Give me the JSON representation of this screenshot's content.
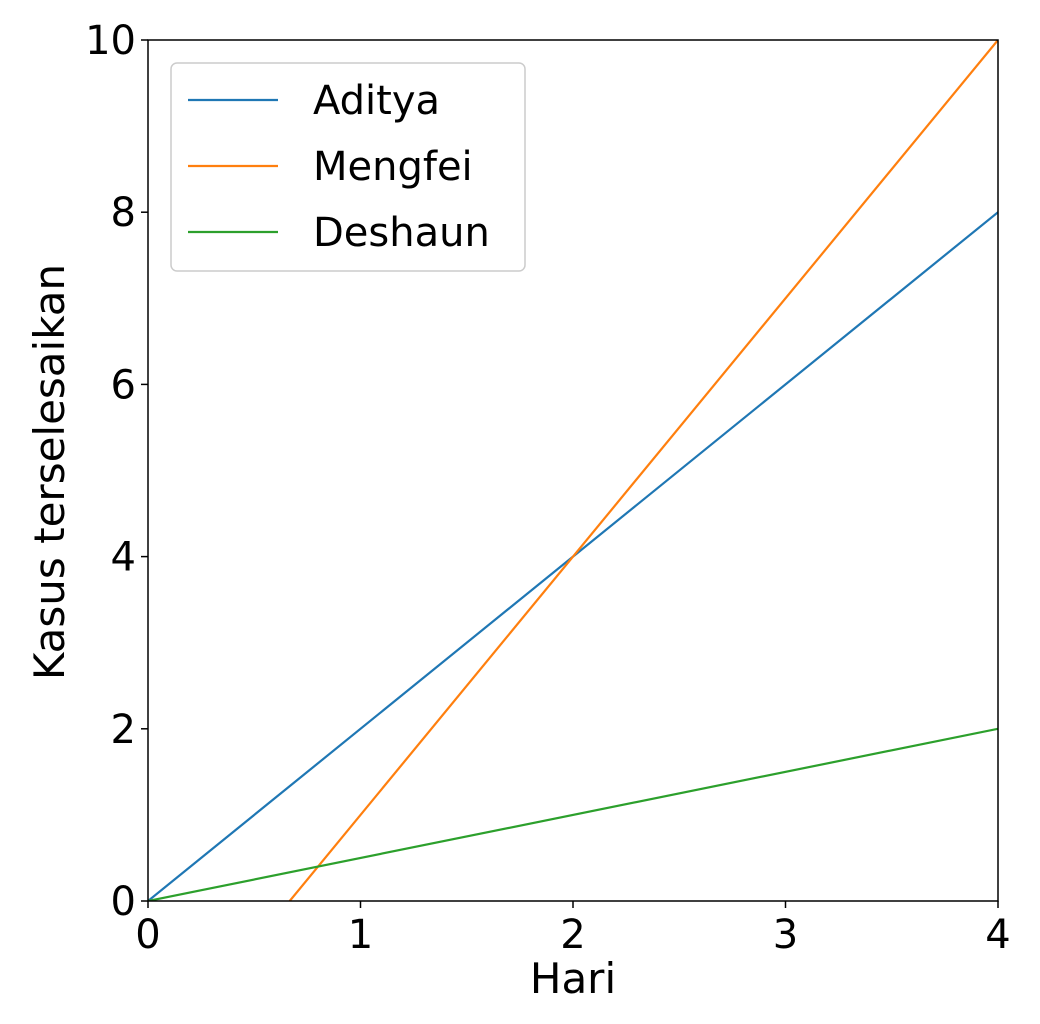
{
  "chart_data": {
    "type": "line",
    "title": "",
    "xlabel": "Hari",
    "ylabel": "Kasus terselesaikan",
    "xlim": [
      0,
      4
    ],
    "ylim": [
      0,
      10
    ],
    "xticks": [
      "0",
      "1",
      "2",
      "3",
      "4"
    ],
    "yticks": [
      "0",
      "2",
      "4",
      "6",
      "8",
      "10"
    ],
    "grid": false,
    "legend": "top-left",
    "series": [
      {
        "name": "Aditya",
        "color": "#1f77b4",
        "x": [
          0,
          4
        ],
        "y": [
          0,
          8
        ]
      },
      {
        "name": "Mengfei",
        "color": "#ff7f0e",
        "x": [
          0.667,
          4
        ],
        "y": [
          0,
          10
        ]
      },
      {
        "name": "Deshaun",
        "color": "#2ca02c",
        "x": [
          0,
          4
        ],
        "y": [
          0,
          2
        ]
      }
    ]
  }
}
